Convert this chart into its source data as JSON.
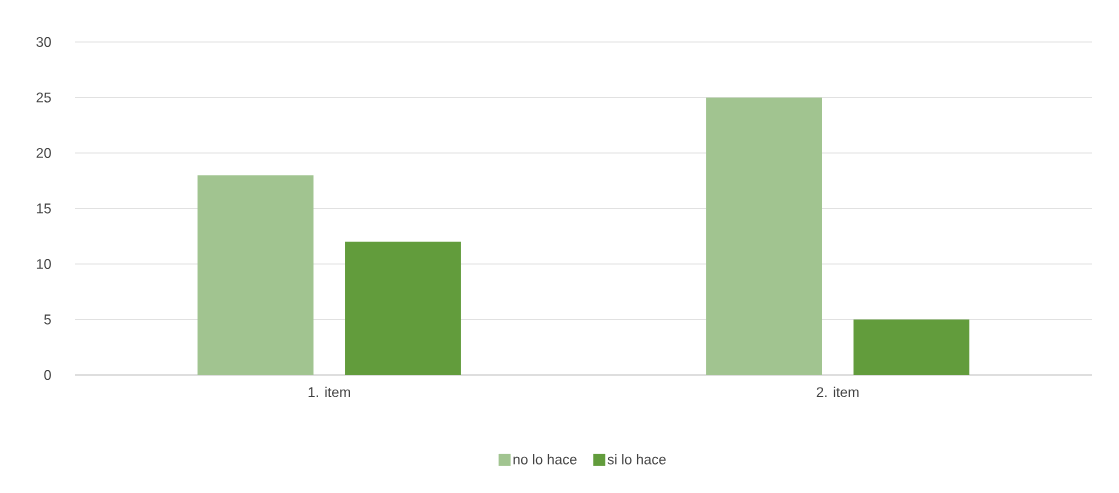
{
  "chart_data": {
    "type": "bar",
    "categories": [
      "1. item",
      "2. item"
    ],
    "series": [
      {
        "name": "no lo hace",
        "color": "#a1c490",
        "values": [
          18,
          25
        ]
      },
      {
        "name": "si lo hace",
        "color": "#629c3c",
        "values": [
          12,
          5
        ]
      }
    ],
    "ylim": [
      0,
      30
    ],
    "yticks": [
      0,
      5,
      10,
      15,
      20,
      25,
      30
    ],
    "grid": "y",
    "legend": "bottom"
  }
}
